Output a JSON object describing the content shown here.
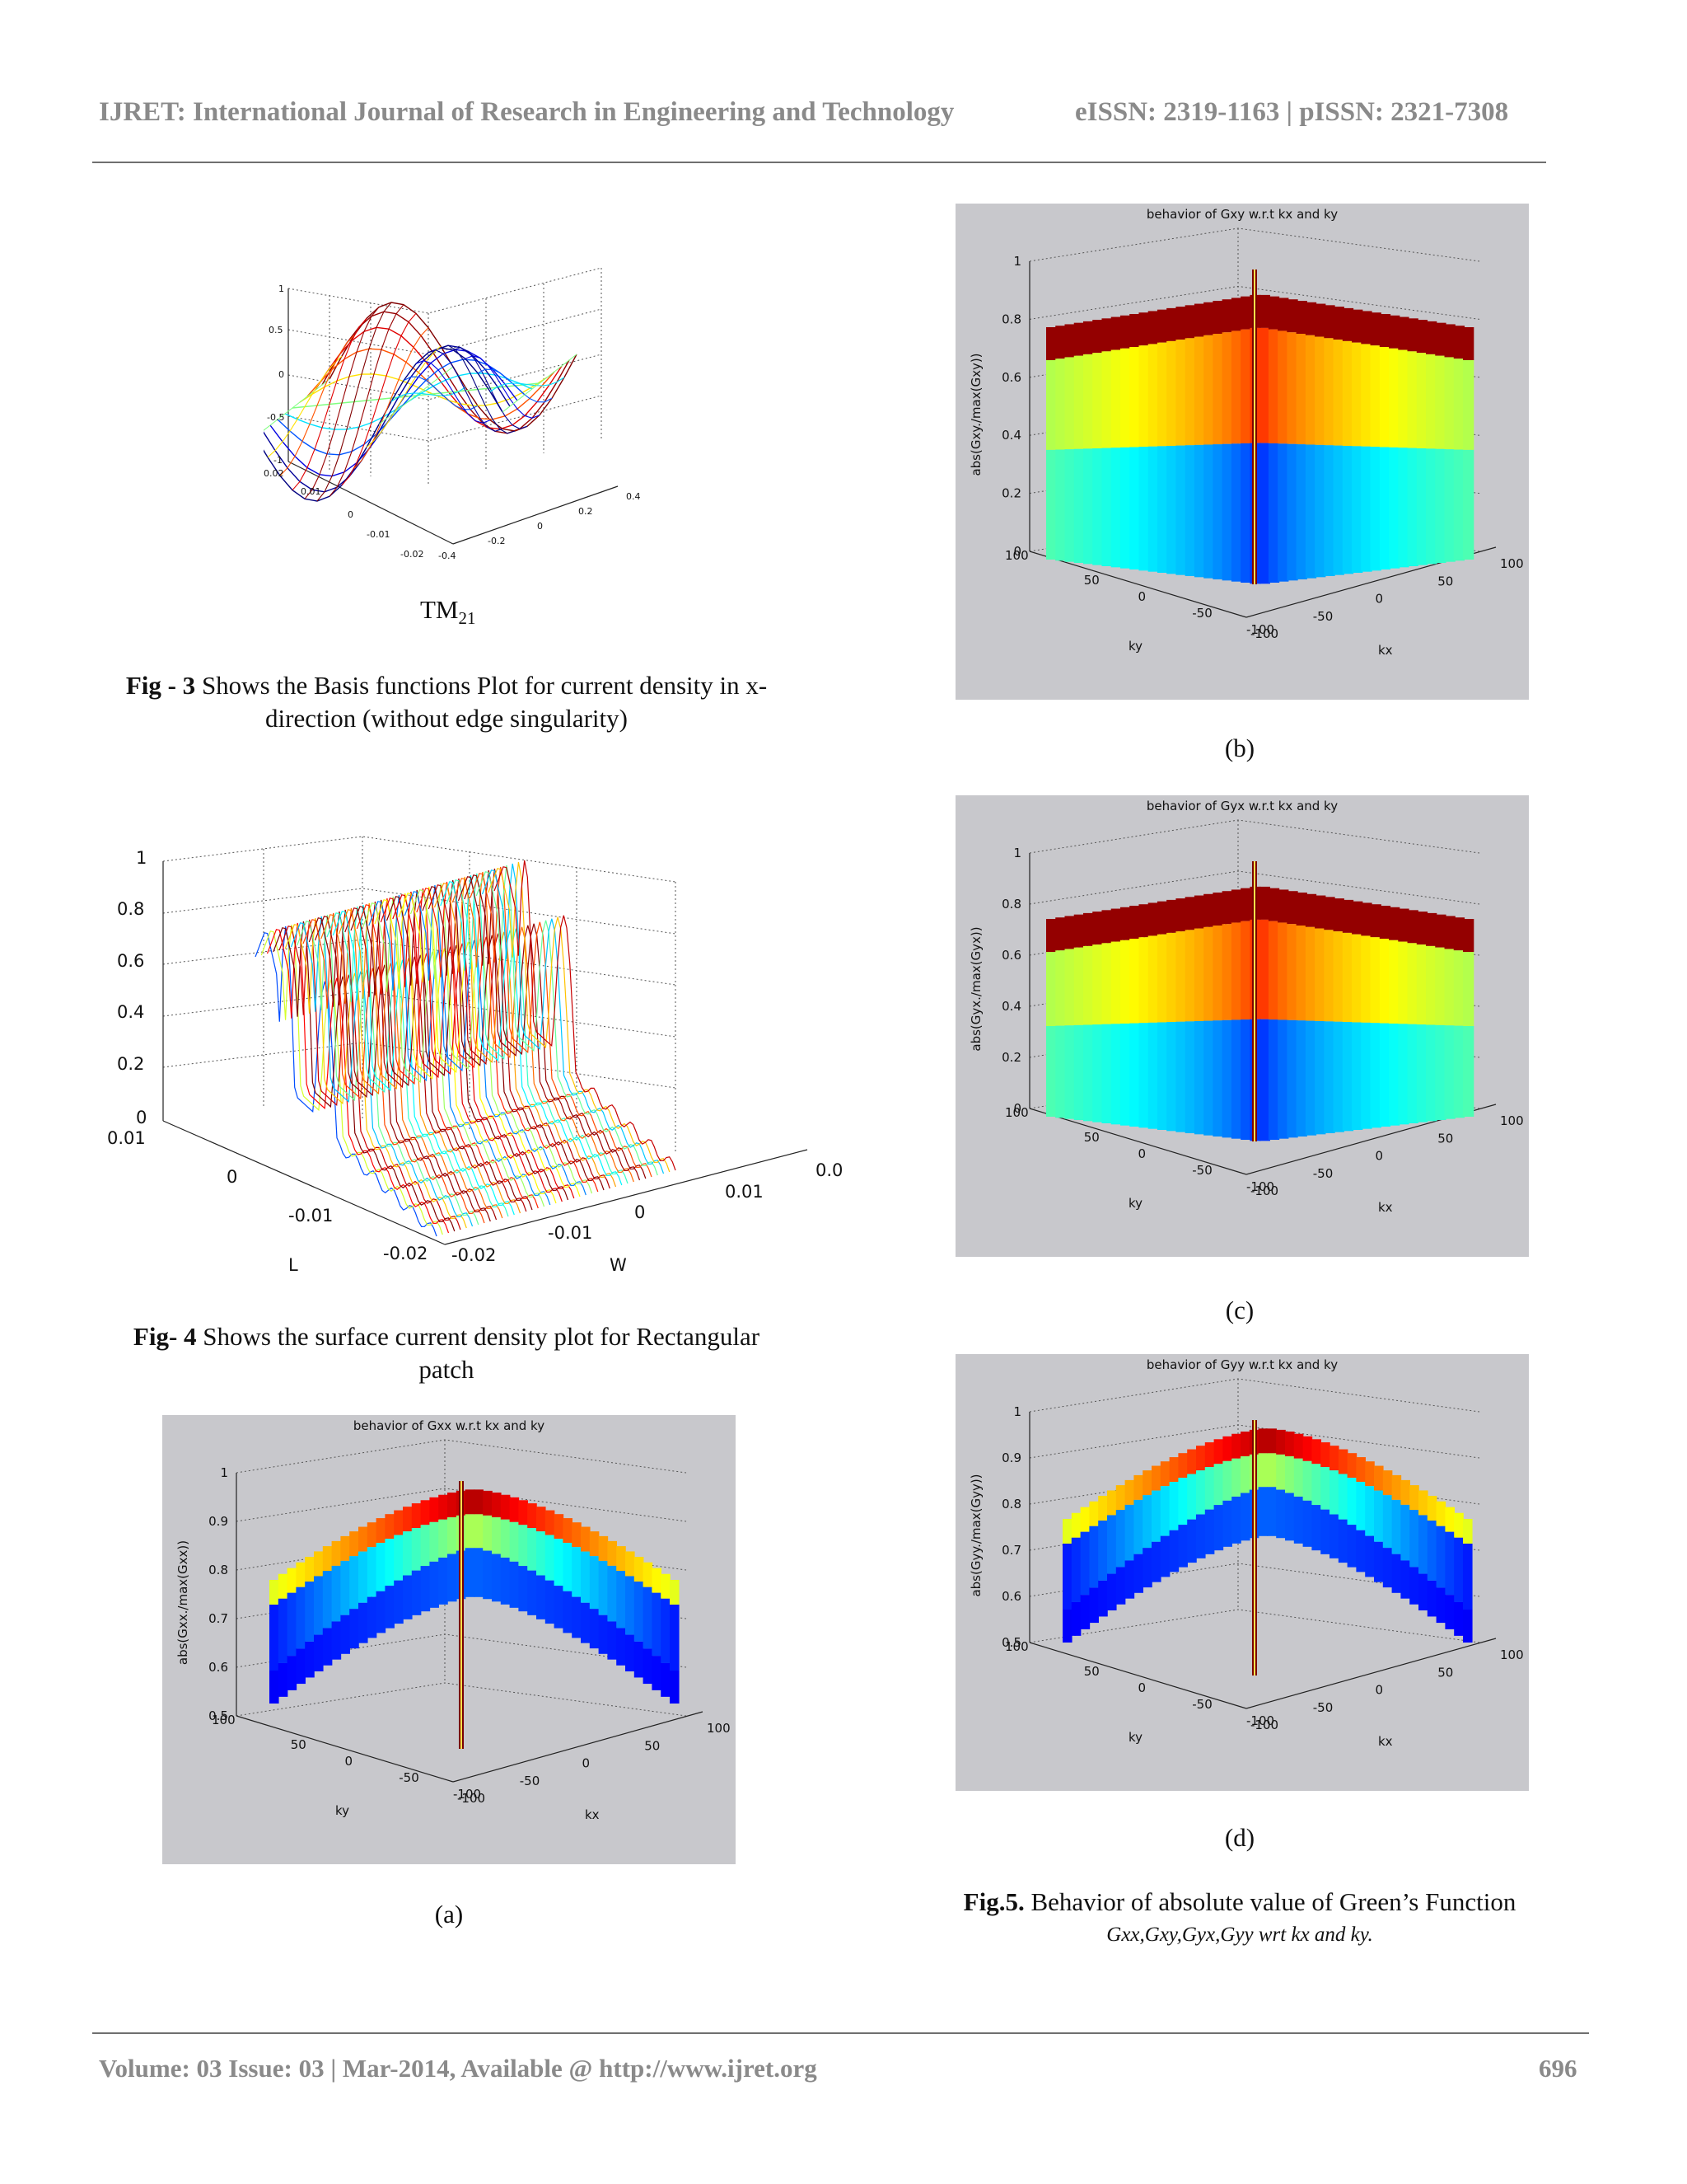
{
  "header": {
    "journal": "IJRET: International Journal of Research in Engineering and Technology",
    "issn": "eISSN: 2319-1163 | pISSN: 2321-7308"
  },
  "fig3": {
    "label": "TM",
    "label_sub": "21",
    "caption_bold": "Fig - 3",
    "caption_line1": " Shows the Basis functions Plot for current density in x-",
    "caption_line2": "direction (without edge singularity)",
    "z_ticks": [
      "1",
      "0.5",
      "0",
      "-0.5",
      "-1"
    ],
    "y_ticks": [
      "0.02",
      "0.01",
      "0",
      "-0.01",
      "-0.02"
    ],
    "x_ticks": [
      "-0.4",
      "-0.2",
      "0",
      "0.2",
      "0.4"
    ]
  },
  "fig4": {
    "caption_bold": "Fig- 4",
    "caption_line1": " Shows the surface current density plot for Rectangular",
    "caption_line2": "patch",
    "z_ticks": [
      "1",
      "0.8",
      "0.6",
      "0.4",
      "0.2",
      "0"
    ],
    "l_ticks": [
      "0.01",
      "0",
      "-0.01",
      "-0.02"
    ],
    "w_ticks": [
      "-0.02",
      "-0.01",
      "0",
      "0.01",
      "0.0"
    ],
    "l_label": "L",
    "w_label": "W"
  },
  "plots": {
    "a": {
      "title": "behavior of Gxx w.r.t kx and ky",
      "zlabel": "abs(Gxx./max(Gxx))",
      "z_ticks": [
        "1",
        "0.9",
        "0.8",
        "0.7",
        "0.6",
        "0.5"
      ],
      "sub": "(a)"
    },
    "b": {
      "title": "behavior of Gxy w.r.t kx and ky",
      "zlabel": "abs(Gxy./max(Gxy))",
      "z_ticks": [
        "1",
        "0.8",
        "0.6",
        "0.4",
        "0.2",
        "0"
      ],
      "sub": "(b)"
    },
    "c": {
      "title": "behavior of Gyx w.r.t kx and ky",
      "zlabel": "abs(Gyx./max(Gyx))",
      "z_ticks": [
        "1",
        "0.8",
        "0.6",
        "0.4",
        "0.2",
        "0"
      ],
      "sub": "(c)"
    },
    "d": {
      "title": "behavior of Gyy w.r.t kx and ky",
      "zlabel": "abs(Gyy./max(Gyy))",
      "z_ticks": [
        "1",
        "0.9",
        "0.8",
        "0.7",
        "0.6",
        "0.5"
      ],
      "sub": "(d)"
    },
    "ky_ticks": [
      "100",
      "50",
      "0",
      "-50",
      "-100"
    ],
    "kx_ticks": [
      "-100",
      "-50",
      "0",
      "50",
      "100"
    ],
    "ky_label": "ky",
    "kx_label": "kx"
  },
  "fig5": {
    "caption_bold": "Fig.5.",
    "caption_text": " Behavior of absolute value of Green’s Function",
    "math_line": "Gxx,Gxy,Gyx,Gyy wrt kx and ky."
  },
  "footer": {
    "volume": "Volume: 03 Issue: 03 | Mar-2014, Available @ http://www.ijret.org",
    "page": "696"
  },
  "colors": {
    "header_gray": "#8a8a8a",
    "panel_bg": "#c8c8cc",
    "surface_high": "#d7191c",
    "surface_mid": "#ffe14a",
    "surface_low": "#1a2fb0"
  }
}
